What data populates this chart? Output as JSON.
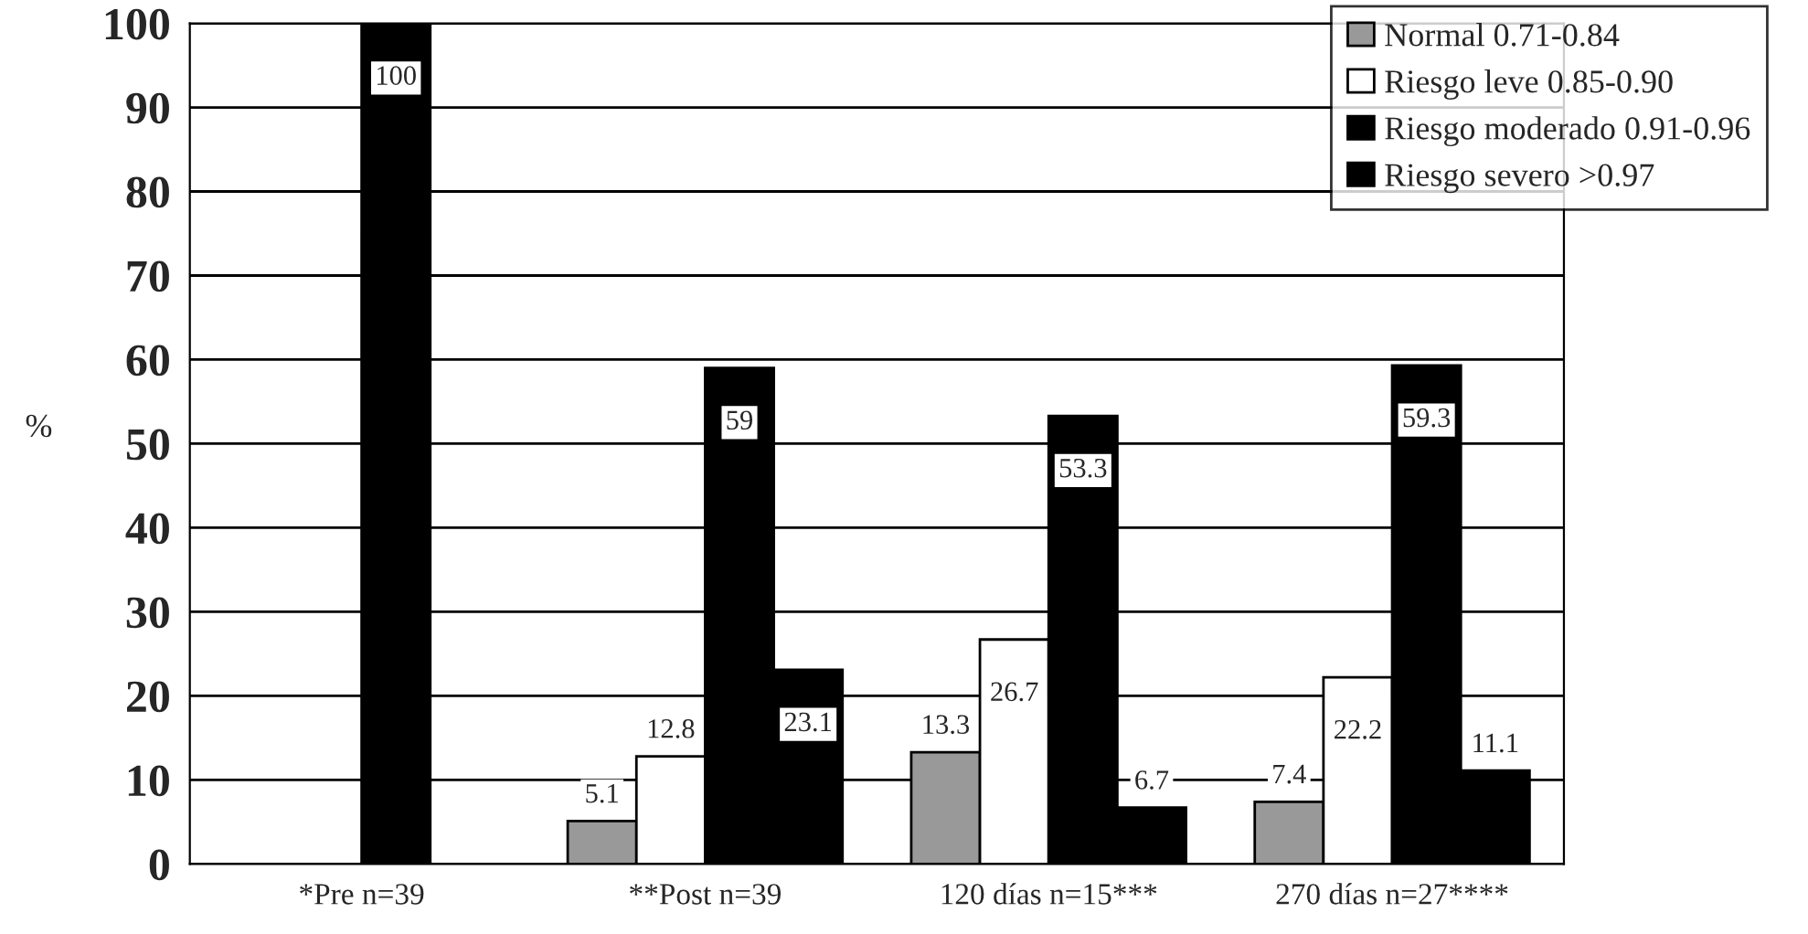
{
  "chart_data": {
    "type": "bar",
    "categories": [
      "*Pre n=39",
      "**Post n=39",
      "120 días n=15***",
      "270 días n=27****"
    ],
    "ylabel": "%",
    "series": [
      {
        "name": "Normal 0.71-0.84",
        "color": "#999999",
        "values": [
          null,
          5.1,
          13.3,
          7.4
        ],
        "value_labels": [
          null,
          "5.1",
          "13.3",
          "7.4"
        ]
      },
      {
        "name": "Riesgo leve 0.85-0.90",
        "color": "#ffffff",
        "values": [
          null,
          12.8,
          26.7,
          22.2
        ],
        "value_labels": [
          null,
          "12.8",
          "26.7",
          "22.2"
        ]
      },
      {
        "name": "Riesgo moderado 0.91-0.96",
        "color": "#000000",
        "values": [
          100,
          59,
          53.3,
          59.3
        ],
        "value_labels": [
          "100",
          "59",
          "53.3",
          "59.3"
        ]
      },
      {
        "name": "Riesgo severo >0.97",
        "color": "#000000",
        "values": [
          null,
          23.1,
          6.7,
          11.1
        ],
        "value_labels": [
          null,
          "23.1",
          "6.7",
          "11.1"
        ]
      }
    ],
    "ylim": [
      0,
      100
    ],
    "yticks": [
      0,
      10,
      20,
      30,
      40,
      50,
      60,
      70,
      80,
      90,
      100
    ],
    "grid": "y",
    "legend": "top right"
  }
}
